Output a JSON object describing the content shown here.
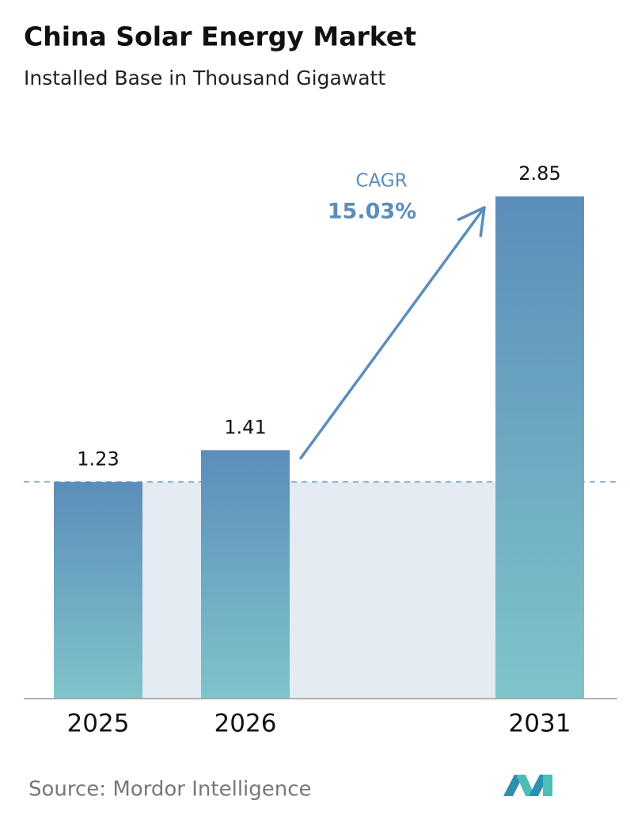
{
  "chart_data": {
    "type": "bar",
    "title": "China Solar Energy Market",
    "subtitle": "Installed Base in Thousand Gigawatt",
    "categories": [
      "2025",
      "2026",
      "2031"
    ],
    "values": [
      1.23,
      1.41,
      2.85
    ],
    "color_top": "#5b8dba",
    "color_bottom": "#80c4ca",
    "annotation": {
      "label": "CAGR",
      "value": "15.03%"
    },
    "source": "Source:  Mordor Intelligence"
  }
}
